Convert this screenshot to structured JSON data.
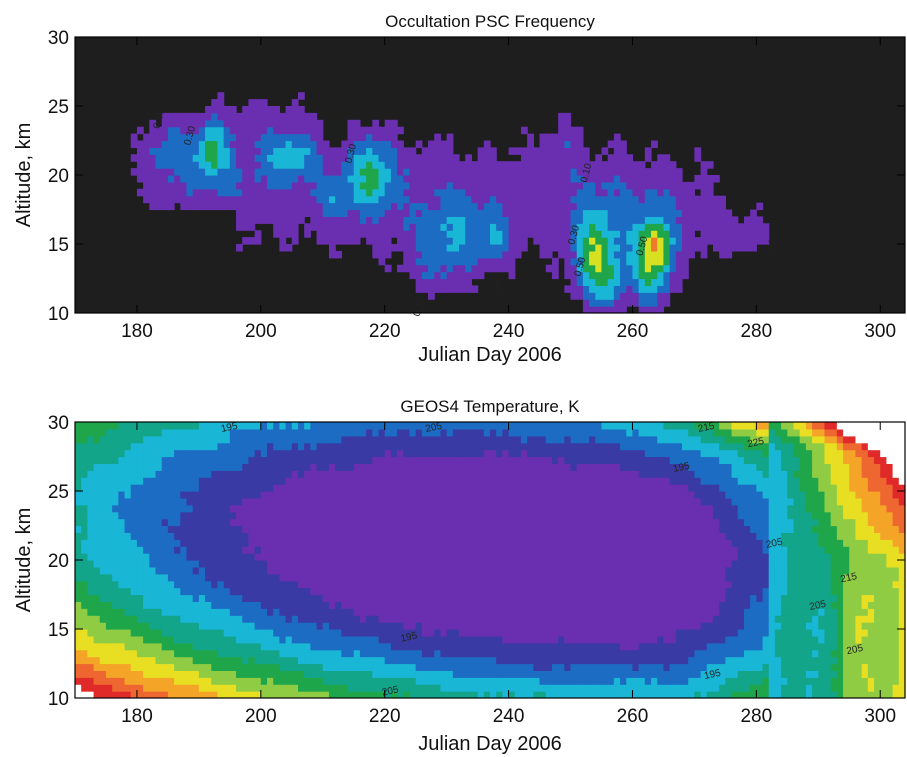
{
  "chart_data": [
    {
      "type": "heatmap",
      "title": "Occultation PSC Frequency",
      "xlabel": "Julian Day 2006",
      "ylabel": "Altitude, km",
      "xlim": [
        170,
        304
      ],
      "ylim": [
        10,
        30
      ],
      "xticks": [
        180,
        200,
        220,
        240,
        260,
        280,
        300
      ],
      "yticks": [
        10,
        15,
        20,
        25,
        30
      ],
      "contour_levels": [
        0.0,
        0.1,
        0.2,
        0.3,
        0.4,
        0.5,
        0.6,
        0.7
      ],
      "level_colors": [
        "#1e1e1e",
        "#6a2fb0",
        "#1c6cc4",
        "#19b6d6",
        "#1fa64a",
        "#d8e022",
        "#ee7a2a",
        "#ffffff"
      ],
      "background_color": "#1e1e1e",
      "contour_labels": [
        {
          "text": "0.10",
          "x": 184,
          "y": 24.0
        },
        {
          "text": "0.30",
          "x": 189,
          "y": 22.8
        },
        {
          "text": "0.30",
          "x": 215,
          "y": 21.5
        },
        {
          "text": "0.10",
          "x": 253,
          "y": 20.1
        },
        {
          "text": "0.30",
          "x": 251,
          "y": 15.6
        },
        {
          "text": "0.50",
          "x": 252,
          "y": 13.3
        },
        {
          "text": "0.50",
          "x": 239,
          "y": 12.2
        },
        {
          "text": "0.50",
          "x": 262,
          "y": 14.8
        },
        {
          "text": "0.10",
          "x": 283,
          "y": 15.0
        },
        {
          "text": "0.10",
          "x": 226,
          "y": 10.4
        }
      ],
      "features": [
        {
          "x": 225,
          "y": 18.5,
          "sx": 42,
          "sy": 5.2,
          "a": 0.16
        },
        {
          "x": 192,
          "y": 20.5,
          "sx": 11,
          "sy": 4.0,
          "a": 0.12
        },
        {
          "x": 262,
          "y": 17,
          "sx": 14,
          "sy": 4.8,
          "a": 0.12
        },
        {
          "x": 185,
          "y": 22,
          "sx": 4,
          "sy": 2.2,
          "a": 0.16
        },
        {
          "x": 192,
          "y": 22,
          "sx": 2.5,
          "sy": 2.3,
          "a": 0.28
        },
        {
          "x": 205,
          "y": 21.5,
          "sx": 4.5,
          "sy": 1.7,
          "a": 0.24
        },
        {
          "x": 218,
          "y": 20.2,
          "sx": 3.5,
          "sy": 2.6,
          "a": 0.3
        },
        {
          "x": 212,
          "y": 18.5,
          "sx": 3,
          "sy": 1.8,
          "a": 0.13
        },
        {
          "x": 231,
          "y": 15.5,
          "sx": 6,
          "sy": 2.6,
          "a": 0.2
        },
        {
          "x": 238,
          "y": 15.2,
          "sx": 3,
          "sy": 1.6,
          "a": 0.14
        },
        {
          "x": 228,
          "y": 12.5,
          "sx": 6,
          "sy": 2.0,
          "a": 0.1
        },
        {
          "x": 254,
          "y": 13.8,
          "sx": 3.5,
          "sy": 3.6,
          "a": 0.38
        },
        {
          "x": 263,
          "y": 13.5,
          "sx": 3.5,
          "sy": 3.2,
          "a": 0.36
        },
        {
          "x": 264,
          "y": 15.0,
          "sx": 2.2,
          "sy": 1.6,
          "a": 0.22
        },
        {
          "x": 278,
          "y": 15.5,
          "sx": 6,
          "sy": 1.6,
          "a": 0.1
        },
        {
          "x": 249,
          "y": 22.5,
          "sx": 3,
          "sy": 2.0,
          "a": 0.09
        },
        {
          "x": 257,
          "y": 12.2,
          "sx": 2.5,
          "sy": 1.8,
          "a": 0.14
        },
        {
          "x": 201,
          "y": 24.5,
          "sx": 8,
          "sy": 2.0,
          "a": 0.08
        }
      ]
    },
    {
      "type": "heatmap",
      "title": "GEOS4 Temperature, K",
      "xlabel": "Julian Day 2006",
      "ylabel": "Altitude, km",
      "xlim": [
        170,
        304
      ],
      "ylim": [
        10,
        30
      ],
      "xticks": [
        180,
        200,
        220,
        240,
        260,
        280,
        300
      ],
      "yticks": [
        10,
        15,
        20,
        25,
        30
      ],
      "contour_levels": [
        185,
        190,
        195,
        200,
        205,
        210,
        215,
        220,
        225,
        230,
        235,
        240,
        245
      ],
      "level_colors": [
        "#6a2fb0",
        "#6a2fb0",
        "#3a3aa4",
        "#1c6cc4",
        "#19b6d6",
        "#12a58a",
        "#1fa64a",
        "#8fcc44",
        "#e8df22",
        "#f4a528",
        "#ee6630",
        "#e02a2a",
        "#ffffff"
      ],
      "contour_labels": [
        {
          "text": "195",
          "x": 195,
          "y": 29.4
        },
        {
          "text": "205",
          "x": 228,
          "y": 29.4
        },
        {
          "text": "195",
          "x": 268,
          "y": 26.5
        },
        {
          "text": "215",
          "x": 272,
          "y": 29.4
        },
        {
          "text": "225",
          "x": 280,
          "y": 28.3
        },
        {
          "text": "205",
          "x": 283,
          "y": 21.0
        },
        {
          "text": "215",
          "x": 295,
          "y": 18.5
        },
        {
          "text": "205",
          "x": 290,
          "y": 16.5
        },
        {
          "text": "205",
          "x": 296,
          "y": 13.3
        },
        {
          "text": "195",
          "x": 224,
          "y": 14.2
        },
        {
          "text": "195",
          "x": 273,
          "y": 11.5
        },
        {
          "text": "205",
          "x": 221,
          "y": 10.3
        }
      ]
    }
  ]
}
